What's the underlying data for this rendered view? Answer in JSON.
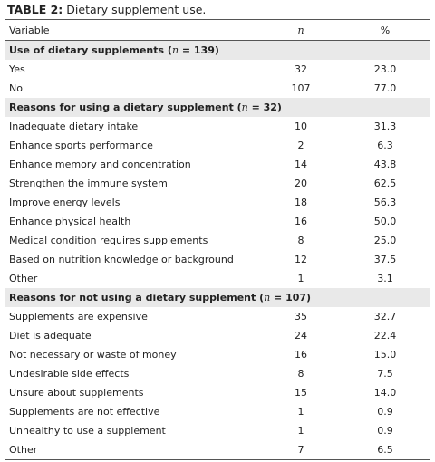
{
  "caption": {
    "label": "TABLE 2:",
    "text": " Dietary supplement use."
  },
  "headers": {
    "variable": "Variable",
    "n": "n",
    "percent": "%"
  },
  "sections": [
    {
      "title_pre": "Use of dietary supplements (",
      "title_n": "n",
      "title_post": " = 139)",
      "rows": [
        {
          "label": "Yes",
          "n": "32",
          "pct": "23.0"
        },
        {
          "label": "No",
          "n": "107",
          "pct": "77.0"
        }
      ]
    },
    {
      "title_pre": "Reasons for using a dietary supplement (",
      "title_n": "n",
      "title_post": " = 32)",
      "rows": [
        {
          "label": "Inadequate dietary intake",
          "n": "10",
          "pct": "31.3"
        },
        {
          "label": "Enhance sports performance",
          "n": "2",
          "pct": "6.3"
        },
        {
          "label": "Enhance memory and concentration",
          "n": "14",
          "pct": "43.8"
        },
        {
          "label": "Strengthen the immune system",
          "n": "20",
          "pct": "62.5"
        },
        {
          "label": "Improve energy levels",
          "n": "18",
          "pct": "56.3"
        },
        {
          "label": "Enhance physical health",
          "n": "16",
          "pct": "50.0"
        },
        {
          "label": "Medical condition requires supplements",
          "n": "8",
          "pct": "25.0"
        },
        {
          "label": "Based on nutrition knowledge or background",
          "n": "12",
          "pct": "37.5"
        },
        {
          "label": "Other",
          "n": "1",
          "pct": "3.1"
        }
      ]
    },
    {
      "title_pre": "Reasons for not using a dietary supplement (",
      "title_n": "n",
      "title_post": " = 107)",
      "rows": [
        {
          "label": "Supplements are expensive",
          "n": "35",
          "pct": "32.7"
        },
        {
          "label": "Diet is adequate",
          "n": "24",
          "pct": "22.4"
        },
        {
          "label": "Not necessary or waste of money",
          "n": "16",
          "pct": "15.0"
        },
        {
          "label": "Undesirable side effects",
          "n": "8",
          "pct": "7.5"
        },
        {
          "label": "Unsure about supplements",
          "n": "15",
          "pct": "14.0"
        },
        {
          "label": "Supplements are not effective",
          "n": "1",
          "pct": "0.9"
        },
        {
          "label": "Unhealthy to use a supplement",
          "n": "1",
          "pct": "0.9"
        },
        {
          "label": "Other",
          "n": "7",
          "pct": "6.5"
        }
      ]
    }
  ]
}
